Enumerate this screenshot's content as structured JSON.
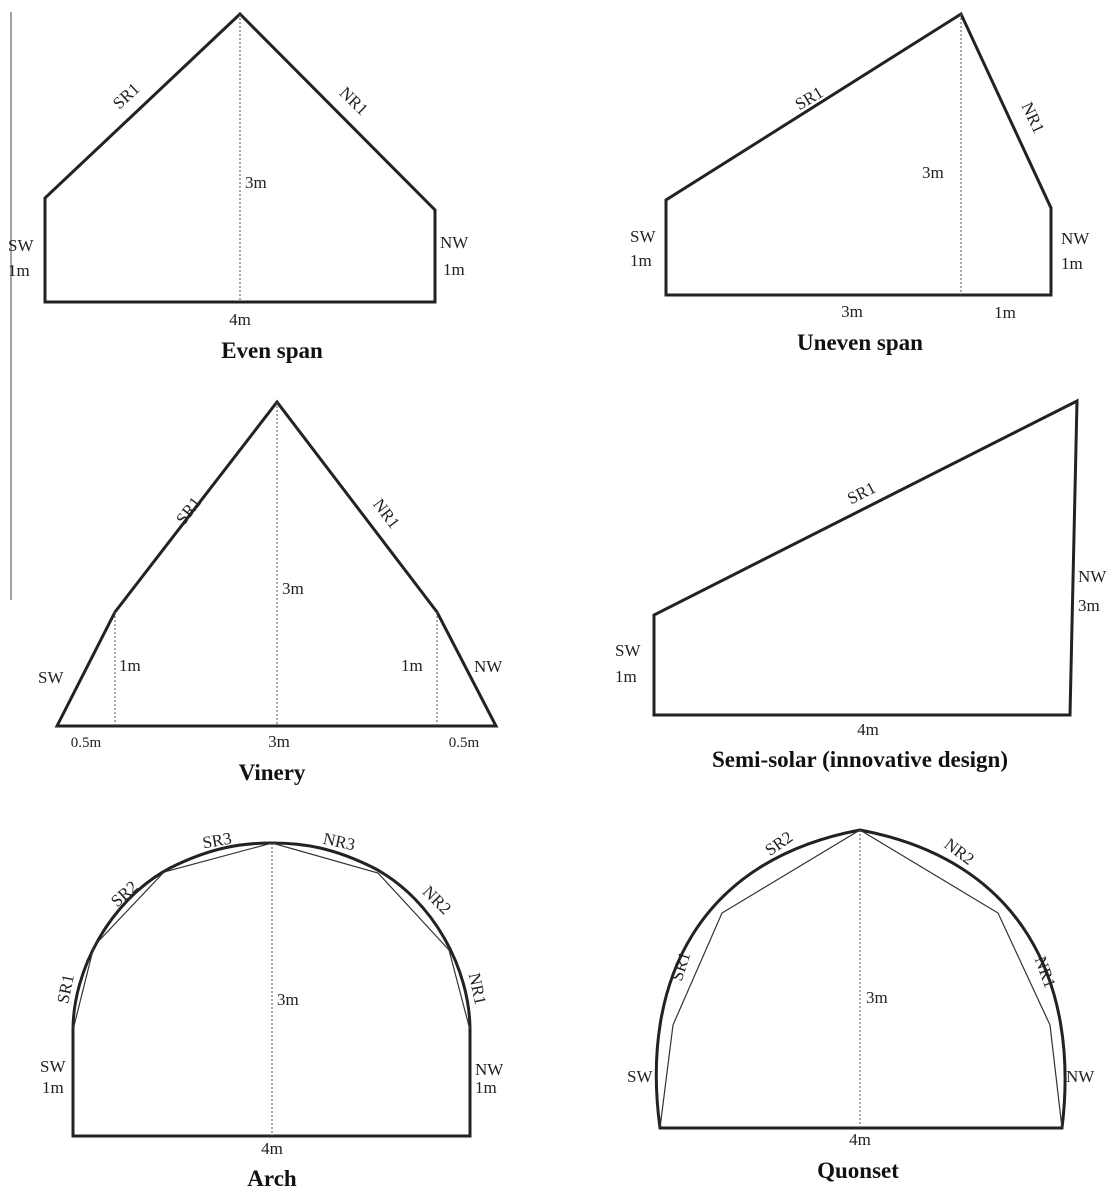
{
  "panels": {
    "even_span": {
      "title": "Even span",
      "labels": {
        "sr1": "SR1",
        "nr1": "NR1",
        "height": "3m",
        "sw": "SW",
        "sw_h": "1m",
        "nw": "NW",
        "nw_h": "1m",
        "base": "4m"
      }
    },
    "uneven_span": {
      "title": "Uneven span",
      "labels": {
        "sr1": "SR1",
        "nr1": "NR1",
        "height": "3m",
        "sw": "SW",
        "sw_h": "1m",
        "nw": "NW",
        "nw_h": "1m",
        "base_left": "3m",
        "base_right": "1m"
      }
    },
    "vinery": {
      "title": "Vinery",
      "labels": {
        "sr1": "SR1",
        "nr1": "NR1",
        "height": "3m",
        "sw": "SW",
        "nw": "NW",
        "left_h": "1m",
        "right_h": "1m",
        "base_left": "0.5m",
        "base_mid": "3m",
        "base_right": "0.5m"
      }
    },
    "semi_solar": {
      "title": "Semi-solar (innovative design)",
      "labels": {
        "sr1": "SR1",
        "sw": "SW",
        "sw_h": "1m",
        "nw": "NW",
        "nw_h": "3m",
        "base": "4m"
      }
    },
    "arch": {
      "title": "Arch",
      "labels": {
        "sr1": "SR1",
        "sr2": "SR2",
        "sr3": "SR3",
        "nr1": "NR1",
        "nr2": "NR2",
        "nr3": "NR3",
        "height": "3m",
        "sw": "SW",
        "sw_h": "1m",
        "nw": "NW",
        "nw_h": "1m",
        "base": "4m"
      }
    },
    "quonset": {
      "title": "Quonset",
      "labels": {
        "sr1": "SR1",
        "sr2": "SR2",
        "nr1": "NR1",
        "nr2": "NR2",
        "height": "3m",
        "sw": "SW",
        "nw": "NW",
        "base": "4m"
      }
    }
  }
}
